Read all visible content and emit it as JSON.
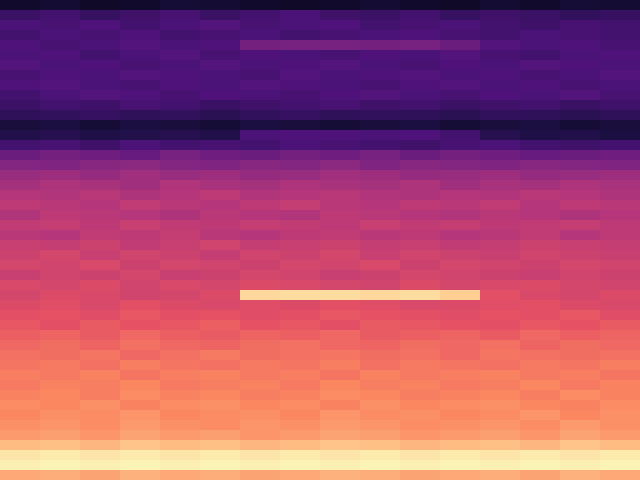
{
  "chart_data": {
    "type": "heatmap",
    "xlim": [
      0,
      16
    ],
    "ylim": [
      0,
      48
    ],
    "tick_labels": false,
    "color_range": [
      0,
      100
    ],
    "cells": [
      [
        8,
        9,
        7,
        8,
        10,
        9,
        8,
        7,
        8,
        9,
        8,
        7,
        9,
        8,
        10,
        9
      ],
      [
        20,
        22,
        19,
        21,
        23,
        20,
        22,
        24,
        21,
        20,
        22,
        19,
        21,
        20,
        18,
        19
      ],
      [
        24,
        23,
        25,
        22,
        24,
        26,
        23,
        24,
        25,
        22,
        23,
        24,
        22,
        21,
        23,
        22
      ],
      [
        22,
        24,
        23,
        25,
        22,
        23,
        24,
        22,
        23,
        24,
        25,
        23,
        22,
        24,
        23,
        22
      ],
      [
        25,
        23,
        24,
        26,
        24,
        25,
        34,
        35,
        35,
        34,
        35,
        32,
        26,
        24,
        25,
        23
      ],
      [
        24,
        25,
        22,
        24,
        26,
        23,
        25,
        24,
        23,
        25,
        24,
        26,
        23,
        22,
        24,
        25
      ],
      [
        26,
        24,
        25,
        23,
        24,
        26,
        24,
        25,
        26,
        24,
        23,
        25,
        24,
        26,
        25,
        24
      ],
      [
        23,
        25,
        24,
        26,
        25,
        24,
        23,
        26,
        24,
        25,
        26,
        24,
        25,
        23,
        24,
        26
      ],
      [
        25,
        26,
        24,
        23,
        25,
        24,
        26,
        25,
        24,
        23,
        25,
        26,
        24,
        25,
        23,
        24
      ],
      [
        22,
        24,
        26,
        25,
        23,
        25,
        24,
        23,
        25,
        26,
        24,
        23,
        25,
        24,
        26,
        23
      ],
      [
        20,
        22,
        21,
        23,
        22,
        20,
        21,
        22,
        23,
        21,
        22,
        20,
        21,
        22,
        20,
        21
      ],
      [
        17,
        18,
        19,
        17,
        18,
        16,
        18,
        19,
        17,
        18,
        17,
        16,
        18,
        17,
        16,
        17
      ],
      [
        11,
        12,
        10,
        12,
        11,
        10,
        12,
        11,
        10,
        11,
        12,
        10,
        11,
        12,
        10,
        11
      ],
      [
        14,
        15,
        13,
        14,
        15,
        14,
        24,
        25,
        25,
        24,
        25,
        22,
        15,
        13,
        14,
        12
      ],
      [
        22,
        23,
        21,
        24,
        22,
        23,
        22,
        24,
        23,
        22,
        21,
        23,
        24,
        22,
        21,
        22
      ],
      [
        32,
        34,
        33,
        31,
        35,
        33,
        32,
        34,
        33,
        35,
        32,
        34,
        33,
        31,
        32,
        33
      ],
      [
        38,
        37,
        39,
        40,
        38,
        37,
        39,
        38,
        40,
        37,
        39,
        38,
        37,
        39,
        38,
        37
      ],
      [
        43,
        44,
        42,
        45,
        43,
        44,
        42,
        43,
        45,
        44,
        42,
        43,
        44,
        42,
        43,
        44
      ],
      [
        46,
        48,
        47,
        45,
        49,
        47,
        46,
        48,
        47,
        46,
        48,
        45,
        47,
        46,
        48,
        47
      ],
      [
        50,
        49,
        51,
        48,
        50,
        52,
        49,
        50,
        51,
        49,
        48,
        50,
        49,
        51,
        50,
        48
      ],
      [
        52,
        51,
        50,
        53,
        51,
        50,
        52,
        54,
        51,
        50,
        52,
        51,
        53,
        50,
        52,
        51
      ],
      [
        49,
        52,
        51,
        50,
        48,
        51,
        50,
        49,
        52,
        51,
        50,
        49,
        51,
        50,
        48,
        50
      ],
      [
        53,
        54,
        52,
        55,
        53,
        52,
        54,
        53,
        52,
        55,
        53,
        54,
        52,
        53,
        54,
        52
      ],
      [
        51,
        50,
        53,
        52,
        54,
        51,
        50,
        52,
        53,
        51,
        52,
        50,
        51,
        53,
        50,
        52
      ],
      [
        55,
        54,
        56,
        53,
        55,
        57,
        54,
        55,
        56,
        54,
        55,
        53,
        54,
        56,
        55,
        54
      ],
      [
        56,
        58,
        55,
        57,
        56,
        54,
        57,
        56,
        58,
        55,
        57,
        56,
        55,
        57,
        56,
        55
      ],
      [
        58,
        57,
        59,
        56,
        58,
        57,
        56,
        58,
        57,
        59,
        56,
        58,
        57,
        56,
        58,
        57
      ],
      [
        55,
        57,
        56,
        58,
        55,
        56,
        58,
        57,
        55,
        56,
        58,
        57,
        56,
        55,
        57,
        56
      ],
      [
        59,
        58,
        60,
        57,
        59,
        58,
        60,
        59,
        58,
        57,
        60,
        58,
        59,
        60,
        58,
        57
      ],
      [
        58,
        60,
        59,
        57,
        58,
        60,
        92,
        93,
        93,
        92,
        93,
        90,
        62,
        59,
        58,
        60
      ],
      [
        60,
        61,
        59,
        62,
        60,
        59,
        61,
        60,
        62,
        61,
        59,
        60,
        61,
        62,
        60,
        59
      ],
      [
        62,
        63,
        61,
        64,
        62,
        63,
        61,
        62,
        64,
        63,
        62,
        61,
        63,
        62,
        64,
        61
      ],
      [
        64,
        62,
        65,
        63,
        64,
        66,
        63,
        64,
        62,
        65,
        64,
        63,
        62,
        64,
        63,
        65
      ],
      [
        66,
        67,
        65,
        68,
        66,
        65,
        67,
        66,
        68,
        65,
        66,
        67,
        65,
        68,
        66,
        67
      ],
      [
        68,
        69,
        67,
        70,
        68,
        67,
        69,
        70,
        68,
        67,
        69,
        68,
        70,
        67,
        69,
        68
      ],
      [
        70,
        69,
        71,
        68,
        70,
        72,
        69,
        70,
        71,
        69,
        70,
        68,
        71,
        70,
        69,
        70
      ],
      [
        71,
        72,
        70,
        73,
        71,
        70,
        72,
        71,
        73,
        70,
        72,
        71,
        70,
        72,
        71,
        73
      ],
      [
        73,
        72,
        74,
        71,
        73,
        74,
        72,
        73,
        71,
        74,
        72,
        73,
        74,
        72,
        73,
        71
      ],
      [
        72,
        74,
        73,
        75,
        72,
        73,
        74,
        72,
        75,
        73,
        74,
        72,
        73,
        75,
        72,
        74
      ],
      [
        74,
        75,
        73,
        76,
        74,
        75,
        73,
        74,
        76,
        75,
        73,
        74,
        75,
        73,
        76,
        74
      ],
      [
        76,
        75,
        77,
        74,
        76,
        77,
        75,
        76,
        74,
        77,
        75,
        76,
        77,
        75,
        74,
        76
      ],
      [
        75,
        77,
        76,
        78,
        75,
        76,
        77,
        75,
        78,
        76,
        77,
        75,
        76,
        78,
        75,
        77
      ],
      [
        77,
        78,
        76,
        79,
        77,
        76,
        78,
        77,
        79,
        78,
        76,
        77,
        78,
        76,
        79,
        77
      ],
      [
        79,
        80,
        78,
        81,
        79,
        80,
        78,
        79,
        81,
        80,
        78,
        79,
        80,
        78,
        81,
        79
      ],
      [
        86,
        87,
        85,
        88,
        86,
        87,
        85,
        86,
        88,
        87,
        85,
        86,
        87,
        85,
        88,
        86
      ],
      [
        95,
        96,
        95,
        96,
        95,
        96,
        95,
        96,
        95,
        96,
        95,
        96,
        95,
        96,
        95,
        96
      ],
      [
        97,
        98,
        97,
        98,
        97,
        98,
        97,
        98,
        97,
        98,
        97,
        98,
        97,
        98,
        97,
        98
      ],
      [
        82,
        83,
        81,
        84,
        82,
        83,
        81,
        82,
        84,
        83,
        81,
        82,
        83,
        81,
        84,
        82
      ]
    ]
  }
}
